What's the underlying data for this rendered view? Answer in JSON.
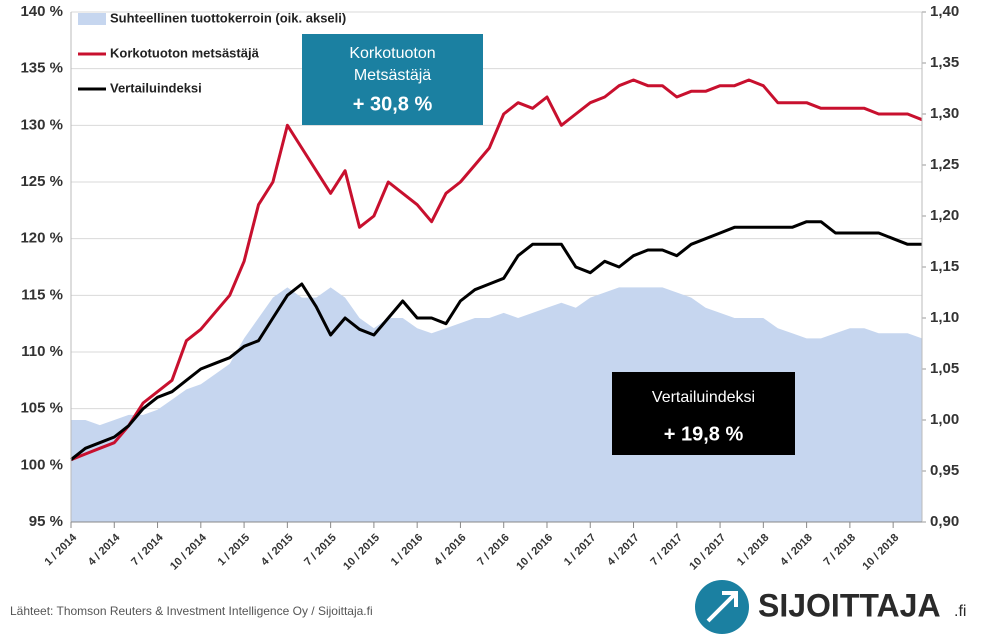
{
  "chart_data": {
    "type": "line",
    "x": [
      "2014-01",
      "2014-02",
      "2014-03",
      "2014-04",
      "2014-05",
      "2014-06",
      "2014-07",
      "2014-08",
      "2014-09",
      "2014-10",
      "2014-11",
      "2014-12",
      "2015-01",
      "2015-02",
      "2015-03",
      "2015-04",
      "2015-05",
      "2015-06",
      "2015-07",
      "2015-08",
      "2015-09",
      "2015-10",
      "2015-11",
      "2015-12",
      "2016-01",
      "2016-02",
      "2016-03",
      "2016-04",
      "2016-05",
      "2016-06",
      "2016-07",
      "2016-08",
      "2016-09",
      "2016-10",
      "2016-11",
      "2016-12",
      "2017-01",
      "2017-02",
      "2017-03",
      "2017-04",
      "2017-05",
      "2017-06",
      "2017-07",
      "2017-08",
      "2017-09",
      "2017-10",
      "2017-11",
      "2017-12",
      "2018-01",
      "2018-02",
      "2018-03",
      "2018-04",
      "2018-05",
      "2018-06",
      "2018-07",
      "2018-08",
      "2018-09",
      "2018-10",
      "2018-11",
      "2018-12"
    ],
    "series": [
      {
        "name": "Suhteellinen tuottokerroin (oik. akseli)",
        "kind": "area",
        "axis": "y2",
        "color": "#c6d6ef",
        "values": [
          1.0,
          1.0,
          0.995,
          1.0,
          1.005,
          1.005,
          1.01,
          1.02,
          1.03,
          1.035,
          1.045,
          1.055,
          1.08,
          1.1,
          1.12,
          1.13,
          1.12,
          1.12,
          1.13,
          1.12,
          1.1,
          1.09,
          1.1,
          1.1,
          1.09,
          1.085,
          1.09,
          1.095,
          1.1,
          1.1,
          1.105,
          1.1,
          1.105,
          1.11,
          1.115,
          1.11,
          1.12,
          1.125,
          1.13,
          1.13,
          1.13,
          1.13,
          1.125,
          1.12,
          1.11,
          1.105,
          1.1,
          1.1,
          1.1,
          1.09,
          1.085,
          1.08,
          1.08,
          1.085,
          1.09,
          1.09,
          1.085,
          1.085,
          1.085,
          1.08
        ]
      },
      {
        "name": "Korkotuoton metsästäjä",
        "color": "#c8102e",
        "values": [
          100.5,
          101,
          101.5,
          102,
          103.5,
          105.5,
          106.5,
          107.5,
          111,
          112,
          113.5,
          115,
          118,
          123,
          125,
          130,
          128,
          126,
          124,
          126,
          121,
          122,
          125,
          124,
          123,
          121.5,
          124,
          125,
          126.5,
          128,
          131,
          132,
          131.5,
          132.5,
          130,
          131,
          132,
          132.5,
          133.5,
          134,
          133.5,
          133.5,
          132.5,
          133,
          133,
          133.5,
          133.5,
          134,
          133.5,
          132,
          132,
          132,
          131.5,
          131.5,
          131.5,
          131.5,
          131,
          131,
          131,
          130.5
        ]
      },
      {
        "name": "Vertailuindeksi",
        "color": "#000000",
        "values": [
          100.5,
          101.5,
          102,
          102.5,
          103.5,
          105,
          106,
          106.5,
          107.5,
          108.5,
          109,
          109.5,
          110.5,
          111,
          113,
          115,
          116,
          114,
          111.5,
          113,
          112,
          111.5,
          113,
          114.5,
          113,
          113,
          112.5,
          114.5,
          115.5,
          116,
          116.5,
          118.5,
          119.5,
          119.5,
          119.5,
          117.5,
          117,
          118,
          117.5,
          118.5,
          119,
          119,
          118.5,
          119.5,
          120,
          120.5,
          121,
          121,
          121,
          121,
          121,
          121.5,
          121.5,
          120.5,
          120.5,
          120.5,
          120.5,
          120,
          119.5,
          119.5
        ]
      }
    ],
    "ylim": [
      95,
      140
    ],
    "yticks": [
      {
        "value": 95,
        "label": "95 %"
      },
      {
        "value": 100,
        "label": "100 %"
      },
      {
        "value": 105,
        "label": "105 %"
      },
      {
        "value": 110,
        "label": "110 %"
      },
      {
        "value": 115,
        "label": "115 %"
      },
      {
        "value": 120,
        "label": "120 %"
      },
      {
        "value": 125,
        "label": "125 %"
      },
      {
        "value": 130,
        "label": "130 %"
      },
      {
        "value": 135,
        "label": "135 %"
      },
      {
        "value": 140,
        "label": "140 %"
      }
    ],
    "y2lim": [
      0.9,
      1.4
    ],
    "y2ticks": [
      {
        "value": 0.9,
        "label": "0,90"
      },
      {
        "value": 0.95,
        "label": "0,95"
      },
      {
        "value": 1.0,
        "label": "1,00"
      },
      {
        "value": 1.05,
        "label": "1,05"
      },
      {
        "value": 1.1,
        "label": "1,10"
      },
      {
        "value": 1.15,
        "label": "1,15"
      },
      {
        "value": 1.2,
        "label": "1,20"
      },
      {
        "value": 1.25,
        "label": "1,25"
      },
      {
        "value": 1.3,
        "label": "1,30"
      },
      {
        "value": 1.35,
        "label": "1,35"
      },
      {
        "value": 1.4,
        "label": "1,40"
      }
    ],
    "xticks": [
      {
        "value": "2014-01",
        "label": "1 / 2014"
      },
      {
        "value": "2014-04",
        "label": "4 / 2014"
      },
      {
        "value": "2014-07",
        "label": "7 / 2014"
      },
      {
        "value": "2014-10",
        "label": "10 / 2014"
      },
      {
        "value": "2015-01",
        "label": "1 / 2015"
      },
      {
        "value": "2015-04",
        "label": "4 / 2015"
      },
      {
        "value": "2015-07",
        "label": "7 / 2015"
      },
      {
        "value": "2015-10",
        "label": "10 / 2015"
      },
      {
        "value": "2016-01",
        "label": "1 / 2016"
      },
      {
        "value": "2016-04",
        "label": "4 / 2016"
      },
      {
        "value": "2016-07",
        "label": "7 / 2016"
      },
      {
        "value": "2016-10",
        "label": "10 / 2016"
      },
      {
        "value": "2017-01",
        "label": "1 / 2017"
      },
      {
        "value": "2017-04",
        "label": "4 / 2017"
      },
      {
        "value": "2017-07",
        "label": "7 / 2017"
      },
      {
        "value": "2017-10",
        "label": "10 / 2017"
      },
      {
        "value": "2018-01",
        "label": "1 / 2018"
      },
      {
        "value": "2018-04",
        "label": "4 / 2018"
      },
      {
        "value": "2018-07",
        "label": "7 / 2018"
      },
      {
        "value": "2018-10",
        "label": "10 / 2018"
      }
    ],
    "grid": true,
    "legend": "top-left",
    "annotations": [
      {
        "lines": [
          "Korkotuoton",
          "Metsästäjä"
        ],
        "value": "+ 30,8 %",
        "color": "#1b80a1"
      },
      {
        "lines": [
          "Vertailuindeksi"
        ],
        "value": "+ 19,8 %",
        "color": "#000000"
      }
    ],
    "source": "Lähteet: Thomson Reuters & Investment Intelligence Oy / Sijoittaja.fi",
    "logo": "SIJOITTAJA",
    "logo_suffix": ".fi"
  }
}
